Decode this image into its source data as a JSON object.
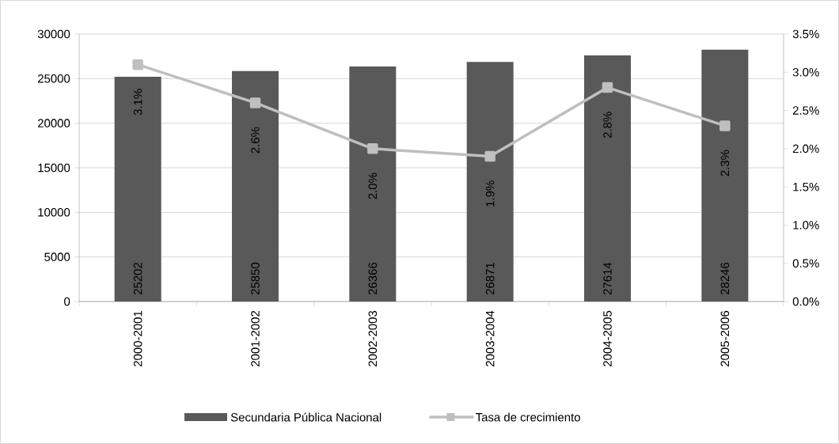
{
  "chart_data": {
    "type": "bar",
    "categories": [
      "2000-2001",
      "2001-2002",
      "2002-2003",
      "2003-2004",
      "2004-2005",
      "2005-2006"
    ],
    "series": [
      {
        "name": "Secundaria Pública Nacional",
        "color": "#595959",
        "values": [
          25202,
          25850,
          26366,
          26871,
          27614,
          28246
        ],
        "value_labels": [
          "25202",
          "25850",
          "26366",
          "26871",
          "27614",
          "28246"
        ]
      },
      {
        "name": "Tasa de crecimiento",
        "type": "line",
        "axis": "y2",
        "color": "#bfbfbf",
        "marker": "square",
        "values": [
          3.1,
          2.6,
          2.0,
          1.9,
          2.8,
          2.3
        ],
        "value_labels": [
          "3.1%",
          "2.6%",
          "2.0%",
          "1.9%",
          "2.8%",
          "2.3%"
        ]
      }
    ],
    "ylim": [
      0,
      30000
    ],
    "yticks": [
      0,
      5000,
      10000,
      15000,
      20000,
      25000,
      30000
    ],
    "y2lim": [
      0,
      3.5
    ],
    "y2ticks": [
      {
        "value": 0,
        "label": "0.0%"
      },
      {
        "value": 0.5,
        "label": "0.5%"
      },
      {
        "value": 1,
        "label": "1.0%"
      },
      {
        "value": 1.5,
        "label": "1.5%"
      },
      {
        "value": 2,
        "label": "2.0%"
      },
      {
        "value": 2.5,
        "label": "2.5%"
      },
      {
        "value": 3,
        "label": "3.0%"
      },
      {
        "value": 3.5,
        "label": "3.5%"
      }
    ],
    "grid": "y",
    "legend": "bottom"
  }
}
